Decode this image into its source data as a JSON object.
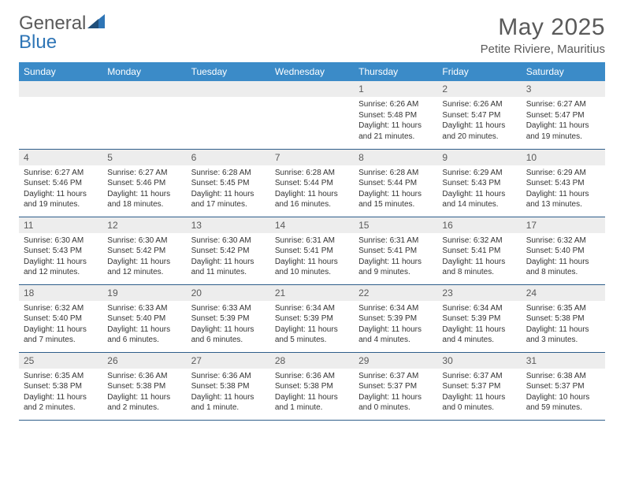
{
  "brand": {
    "part1": "General",
    "part2": "Blue"
  },
  "title": "May 2025",
  "location": "Petite Riviere, Mauritius",
  "colors": {
    "header_bg": "#3b8bc8",
    "header_text": "#ffffff",
    "daynum_bg": "#ededed",
    "daynum_text": "#5a5a5a",
    "cell_border": "#2e5d8a",
    "body_text": "#333333",
    "title_text": "#5a5a5a",
    "logo_accent": "#2e75b6"
  },
  "weekdays": [
    "Sunday",
    "Monday",
    "Tuesday",
    "Wednesday",
    "Thursday",
    "Friday",
    "Saturday"
  ],
  "weeks": [
    [
      null,
      null,
      null,
      null,
      {
        "n": "1",
        "sr": "6:26 AM",
        "ss": "5:48 PM",
        "dl": "11 hours and 21 minutes."
      },
      {
        "n": "2",
        "sr": "6:26 AM",
        "ss": "5:47 PM",
        "dl": "11 hours and 20 minutes."
      },
      {
        "n": "3",
        "sr": "6:27 AM",
        "ss": "5:47 PM",
        "dl": "11 hours and 19 minutes."
      }
    ],
    [
      {
        "n": "4",
        "sr": "6:27 AM",
        "ss": "5:46 PM",
        "dl": "11 hours and 19 minutes."
      },
      {
        "n": "5",
        "sr": "6:27 AM",
        "ss": "5:46 PM",
        "dl": "11 hours and 18 minutes."
      },
      {
        "n": "6",
        "sr": "6:28 AM",
        "ss": "5:45 PM",
        "dl": "11 hours and 17 minutes."
      },
      {
        "n": "7",
        "sr": "6:28 AM",
        "ss": "5:44 PM",
        "dl": "11 hours and 16 minutes."
      },
      {
        "n": "8",
        "sr": "6:28 AM",
        "ss": "5:44 PM",
        "dl": "11 hours and 15 minutes."
      },
      {
        "n": "9",
        "sr": "6:29 AM",
        "ss": "5:43 PM",
        "dl": "11 hours and 14 minutes."
      },
      {
        "n": "10",
        "sr": "6:29 AM",
        "ss": "5:43 PM",
        "dl": "11 hours and 13 minutes."
      }
    ],
    [
      {
        "n": "11",
        "sr": "6:30 AM",
        "ss": "5:43 PM",
        "dl": "11 hours and 12 minutes."
      },
      {
        "n": "12",
        "sr": "6:30 AM",
        "ss": "5:42 PM",
        "dl": "11 hours and 12 minutes."
      },
      {
        "n": "13",
        "sr": "6:30 AM",
        "ss": "5:42 PM",
        "dl": "11 hours and 11 minutes."
      },
      {
        "n": "14",
        "sr": "6:31 AM",
        "ss": "5:41 PM",
        "dl": "11 hours and 10 minutes."
      },
      {
        "n": "15",
        "sr": "6:31 AM",
        "ss": "5:41 PM",
        "dl": "11 hours and 9 minutes."
      },
      {
        "n": "16",
        "sr": "6:32 AM",
        "ss": "5:41 PM",
        "dl": "11 hours and 8 minutes."
      },
      {
        "n": "17",
        "sr": "6:32 AM",
        "ss": "5:40 PM",
        "dl": "11 hours and 8 minutes."
      }
    ],
    [
      {
        "n": "18",
        "sr": "6:32 AM",
        "ss": "5:40 PM",
        "dl": "11 hours and 7 minutes."
      },
      {
        "n": "19",
        "sr": "6:33 AM",
        "ss": "5:40 PM",
        "dl": "11 hours and 6 minutes."
      },
      {
        "n": "20",
        "sr": "6:33 AM",
        "ss": "5:39 PM",
        "dl": "11 hours and 6 minutes."
      },
      {
        "n": "21",
        "sr": "6:34 AM",
        "ss": "5:39 PM",
        "dl": "11 hours and 5 minutes."
      },
      {
        "n": "22",
        "sr": "6:34 AM",
        "ss": "5:39 PM",
        "dl": "11 hours and 4 minutes."
      },
      {
        "n": "23",
        "sr": "6:34 AM",
        "ss": "5:39 PM",
        "dl": "11 hours and 4 minutes."
      },
      {
        "n": "24",
        "sr": "6:35 AM",
        "ss": "5:38 PM",
        "dl": "11 hours and 3 minutes."
      }
    ],
    [
      {
        "n": "25",
        "sr": "6:35 AM",
        "ss": "5:38 PM",
        "dl": "11 hours and 2 minutes."
      },
      {
        "n": "26",
        "sr": "6:36 AM",
        "ss": "5:38 PM",
        "dl": "11 hours and 2 minutes."
      },
      {
        "n": "27",
        "sr": "6:36 AM",
        "ss": "5:38 PM",
        "dl": "11 hours and 1 minute."
      },
      {
        "n": "28",
        "sr": "6:36 AM",
        "ss": "5:38 PM",
        "dl": "11 hours and 1 minute."
      },
      {
        "n": "29",
        "sr": "6:37 AM",
        "ss": "5:37 PM",
        "dl": "11 hours and 0 minutes."
      },
      {
        "n": "30",
        "sr": "6:37 AM",
        "ss": "5:37 PM",
        "dl": "11 hours and 0 minutes."
      },
      {
        "n": "31",
        "sr": "6:38 AM",
        "ss": "5:37 PM",
        "dl": "10 hours and 59 minutes."
      }
    ]
  ],
  "labels": {
    "sunrise": "Sunrise: ",
    "sunset": "Sunset: ",
    "daylight": "Daylight: "
  }
}
